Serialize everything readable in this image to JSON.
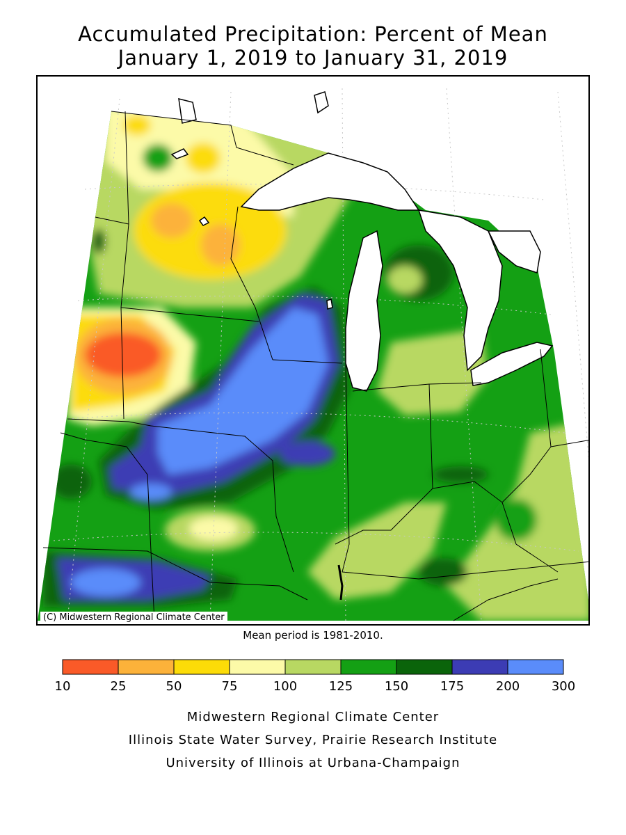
{
  "header": {
    "title_line1": "Accumulated Precipitation: Percent of Mean",
    "title_line2": "January 1, 2019 to January 31, 2019"
  },
  "map": {
    "copyright": "(C) Midwestern Regional Climate Center",
    "mean_period": "Mean period is 1981-2010."
  },
  "legend": {
    "ticks": [
      "10",
      "25",
      "50",
      "75",
      "100",
      "125",
      "150",
      "175",
      "200",
      "300"
    ],
    "colors": [
      "#fa5a28",
      "#fcb23a",
      "#fcdc08",
      "#fcfaa8",
      "#b8d862",
      "#14a014",
      "#0a640a",
      "#3c3cb4",
      "#5a8cfa"
    ]
  },
  "colors": {
    "lake": "#ffffff",
    "border": "#000000",
    "grid": "#c8c8c8"
  },
  "footer": {
    "line1": "Midwestern Regional Climate Center",
    "line2": "Illinois State Water Survey, Prairie Research Institute",
    "line3": "University of Illinois at Urbana-Champaign"
  }
}
